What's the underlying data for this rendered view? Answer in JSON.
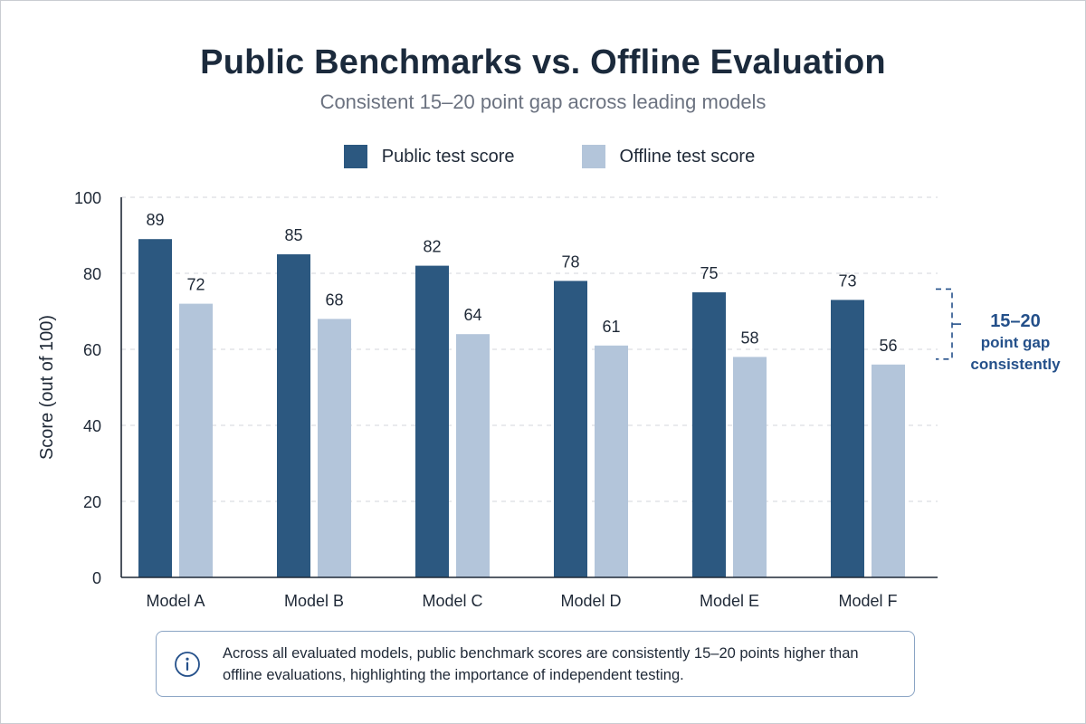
{
  "title": "Public Benchmarks vs. Offline Evaluation",
  "subtitle": "Consistent 15–20 point gap across leading models",
  "colors": {
    "public": "#2c5880",
    "offline": "#b3c5da",
    "accent": "#24508a"
  },
  "chart_data": {
    "type": "bar",
    "title": "Public Benchmarks vs. Offline Evaluation",
    "subtitle": "Consistent 15–20 point gap across leading models",
    "categories": [
      "Model A",
      "Model B",
      "Model C",
      "Model D",
      "Model E",
      "Model F"
    ],
    "series": [
      {
        "name": "Public test score",
        "values": [
          89,
          85,
          82,
          78,
          75,
          73
        ],
        "color": "#2c5880"
      },
      {
        "name": "Offline test score",
        "values": [
          72,
          68,
          64,
          61,
          58,
          56
        ],
        "color": "#b3c5da"
      }
    ],
    "ylabel": "Score (out of 100)",
    "xlabel": "",
    "ylim": [
      0,
      100
    ],
    "yticks": [
      0,
      20,
      40,
      60,
      80,
      100
    ],
    "grid": true,
    "legend_position": "top-center",
    "annotation": {
      "lines": [
        "15–20",
        "point gap",
        "consistently"
      ]
    }
  },
  "note": {
    "icon": "info-icon",
    "text": "Across all evaluated models, public benchmark scores are consistently 15–20 points higher than offline evaluations, highlighting the importance of independent testing."
  }
}
